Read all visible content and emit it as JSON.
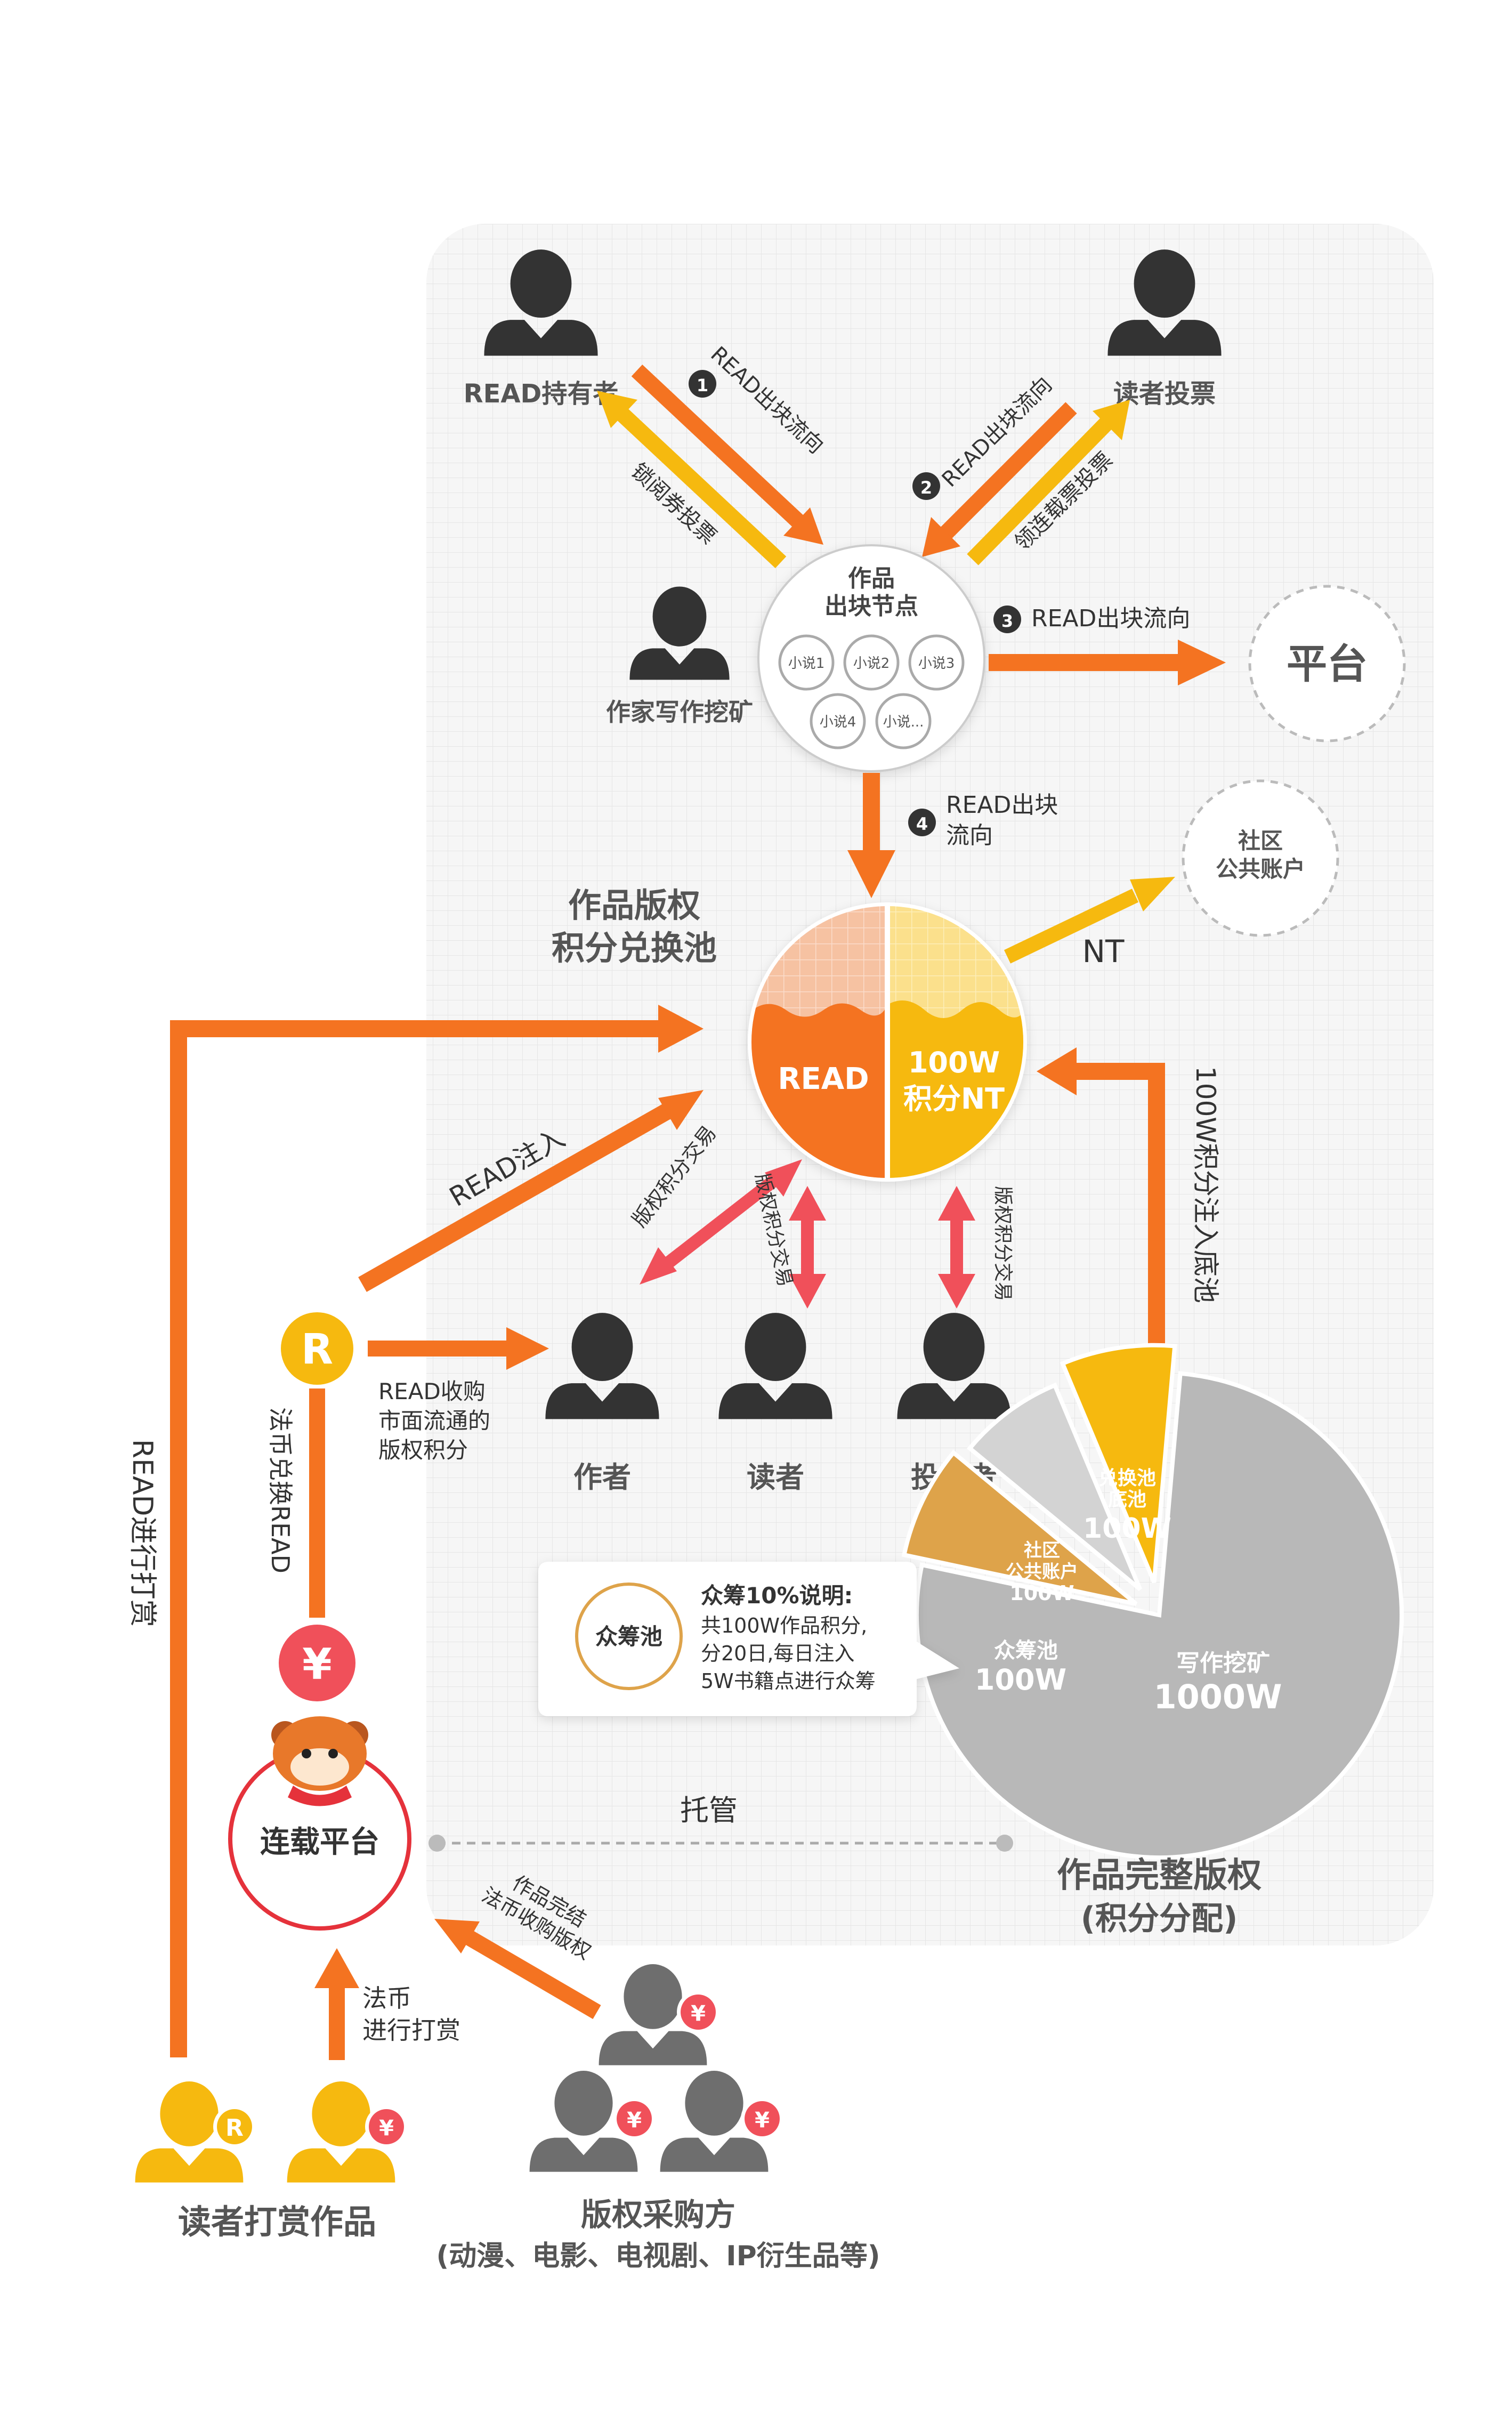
{
  "colors": {
    "orange": "#f47321",
    "yellow": "#f6b90f",
    "red": "#f0505a",
    "gray_dark": "#333333",
    "gray_mid": "#6e6e6e",
    "gray_light": "#cfcfcf",
    "panel_bg": "#f6f6f6",
    "tan": "#dea34a",
    "pie_gray": "#b8b8b8",
    "pie_lightgray": "#d3d3d3"
  },
  "people": {
    "read_holder": "READ持有者",
    "reader_vote": "读者投票",
    "writer_mining": "作家写作挖矿",
    "author": "作者",
    "reader": "读者",
    "investor": "投资者",
    "reader_reward": "读者打赏作品",
    "buyer_title": "版权采购方",
    "buyer_sub": "(动漫、电影、电视剧、IP衍生品等)"
  },
  "flows": {
    "step1_num": "1",
    "step1": "READ出块流向",
    "step1_back": "锁阅券投票",
    "step2_num": "2",
    "step2": "READ出块流向",
    "step2_back": "领连载票投票",
    "step3_num": "3",
    "step3": "READ出块流向",
    "step4_num": "4",
    "step4_l1": "READ出块",
    "step4_l2": "流向",
    "nt": "NT",
    "read_inject": "READ注入",
    "trade1": "版权积分交易",
    "trade2": "版权积分交易",
    "trade3": "版权积分交易",
    "inject_100w": "100W积分注入底池",
    "read_buy_l1": "READ收购",
    "read_buy_l2": "市面流通的",
    "read_buy_l3": "版权积分",
    "fiat_exchange": "法币兑换READ",
    "read_reward": "READ进行打赏",
    "fiat_reward_l1": "法币",
    "fiat_reward_l2": "进行打赏",
    "complete_l1": "作品完结",
    "complete_l2": "法币收购版权",
    "custody": "托管"
  },
  "block_node": {
    "title_l1": "作品",
    "title_l2": "出块节点",
    "novels": [
      "小说1",
      "小说2",
      "小说3",
      "小说4",
      "小说..."
    ]
  },
  "nodes": {
    "platform": "平台",
    "community_l1": "社区",
    "community_l2": "公共账户",
    "serial_platform": "连载平台",
    "r_icon": "R",
    "yen": "¥"
  },
  "pool": {
    "title_l1": "作品版权",
    "title_l2": "积分兑换池",
    "left_label": "READ",
    "right_l1": "100W",
    "right_l2": "积分NT"
  },
  "crowdfund": {
    "badge": "众筹池",
    "title": "众筹10%说明:",
    "l1": "共100W作品积分,",
    "l2": "分20日,每日注入",
    "l3": "5W书籍点进行众筹"
  },
  "chart_data": {
    "type": "pie",
    "title": "作品完整版权",
    "subtitle": "(积分分配)",
    "unit": "W",
    "slices": [
      {
        "name": "写作挖矿",
        "value": 1000,
        "label": "1000W",
        "color": "#b8b8b8"
      },
      {
        "name": "众筹池",
        "value": 100,
        "label": "100W",
        "color": "#dea34a"
      },
      {
        "name": "社区公共账户",
        "value": 100,
        "label": "100W",
        "color": "#d3d3d3"
      },
      {
        "name": "兑换池底池",
        "value": 100,
        "label": "100W",
        "color": "#f6b90f"
      }
    ]
  }
}
